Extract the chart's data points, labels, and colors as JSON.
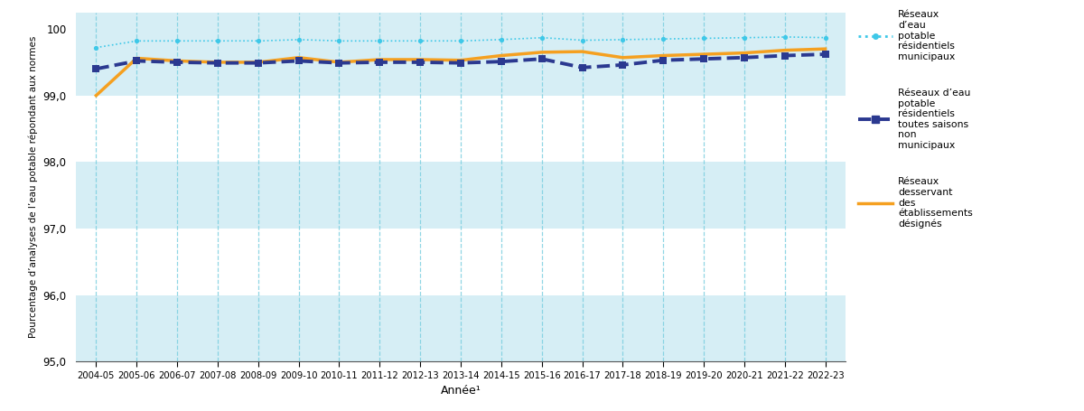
{
  "years": [
    "2004-05",
    "2005-06",
    "2006-07",
    "2007-08",
    "2008-09",
    "2009-10",
    "2010-11",
    "2011-12",
    "2012-13",
    "2013-14",
    "2014-15",
    "2015-16",
    "2016-17",
    "2017-18",
    "2018-19",
    "2019-20",
    "2020-21",
    "2021-22",
    "2022-23"
  ],
  "municipal_residential": [
    99.72,
    99.82,
    99.82,
    99.82,
    99.82,
    99.84,
    99.82,
    99.82,
    99.82,
    99.82,
    99.84,
    99.87,
    99.83,
    99.84,
    99.85,
    99.86,
    99.87,
    99.88,
    99.87
  ],
  "non_municipal_seasonal": [
    99.4,
    99.52,
    99.5,
    99.49,
    99.49,
    99.52,
    99.49,
    99.5,
    99.5,
    99.49,
    99.51,
    99.55,
    99.42,
    99.46,
    99.53,
    99.55,
    99.57,
    99.6,
    99.62
  ],
  "designated_facilities": [
    99.0,
    99.56,
    99.52,
    99.5,
    99.5,
    99.57,
    99.5,
    99.54,
    99.54,
    99.53,
    99.6,
    99.65,
    99.66,
    99.57,
    99.6,
    99.62,
    99.64,
    99.68,
    99.7
  ],
  "municipal_color": "#3EC8E8",
  "non_municipal_color": "#2B3990",
  "designated_color": "#F5A020",
  "bg_stripe_light": "#D6EEF5",
  "bg_stripe_white": "#FFFFFF",
  "ylabel": "Pourcentage d’analyses de l’eau potable répondant aux normes",
  "xlabel": "Année¹",
  "legend_1": "Réseaux\nd’eau\npotable\nrésidentiels\nmunicipaux",
  "legend_2": "Réseaux d’eau\npotable\nrésidentiels\ntoutes saisons\nnon\nmunicipaux",
  "legend_3": "Réseaux\ndesservant\ndes\nétablissements\ndésignés",
  "ylim_min": 95.0,
  "ylim_max": 100.25,
  "yticks": [
    95.0,
    96.0,
    97.0,
    98.0,
    99.0,
    100
  ],
  "vgrid_color": "#7BCFE0",
  "bottom_spine_color": "#555555"
}
